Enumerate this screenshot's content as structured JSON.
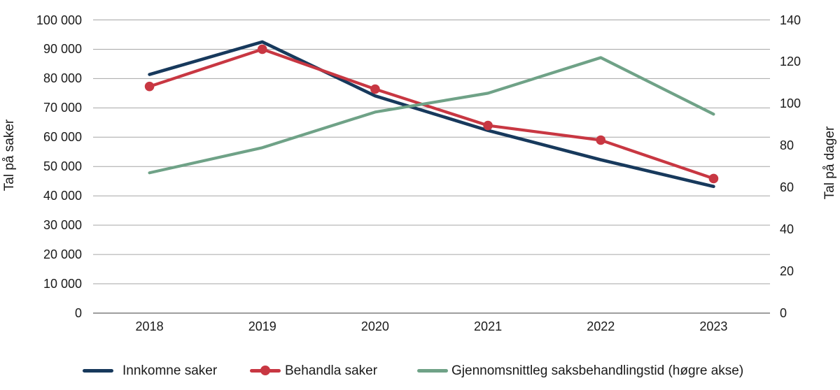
{
  "chart_data": {
    "type": "line",
    "categories": [
      "2018",
      "2019",
      "2020",
      "2021",
      "2022",
      "2023"
    ],
    "series": [
      {
        "name": "Innkomne saker",
        "axis": "left",
        "color": "#17395C",
        "marker": "none",
        "values": [
          81400,
          92500,
          74100,
          62300,
          52300,
          43200
        ]
      },
      {
        "name": "Behandla saker",
        "axis": "left",
        "color": "#C83742",
        "marker": "circle",
        "values": [
          77300,
          90000,
          76400,
          64000,
          59000,
          45900
        ]
      },
      {
        "name": "Gjennomsnittleg saksbehandlingstid (høgre akse)",
        "axis": "right",
        "color": "#6FA287",
        "marker": "none",
        "values": [
          67,
          79,
          96,
          105,
          122,
          95
        ]
      }
    ],
    "left_axis": {
      "title": "Tal på saker",
      "min": 0,
      "max": 100000,
      "step": 10000,
      "tick_labels": [
        "0",
        "10 000",
        "20 000",
        "30 000",
        "40 000",
        "50 000",
        "60 000",
        "70 000",
        "80 000",
        "90 000",
        "100 000"
      ]
    },
    "right_axis": {
      "title": "Tal på dager",
      "min": 0,
      "max": 140,
      "step": 20,
      "tick_labels": [
        "0",
        "20",
        "40",
        "60",
        "80",
        "100",
        "120",
        "140"
      ]
    },
    "grid": "horizontal",
    "legend_position": "bottom",
    "colors": {
      "gridline": "#A6A6A6",
      "axis_line": "#7F7F7F",
      "text": "#1A1A1A",
      "background": "#FFFFFF"
    }
  }
}
